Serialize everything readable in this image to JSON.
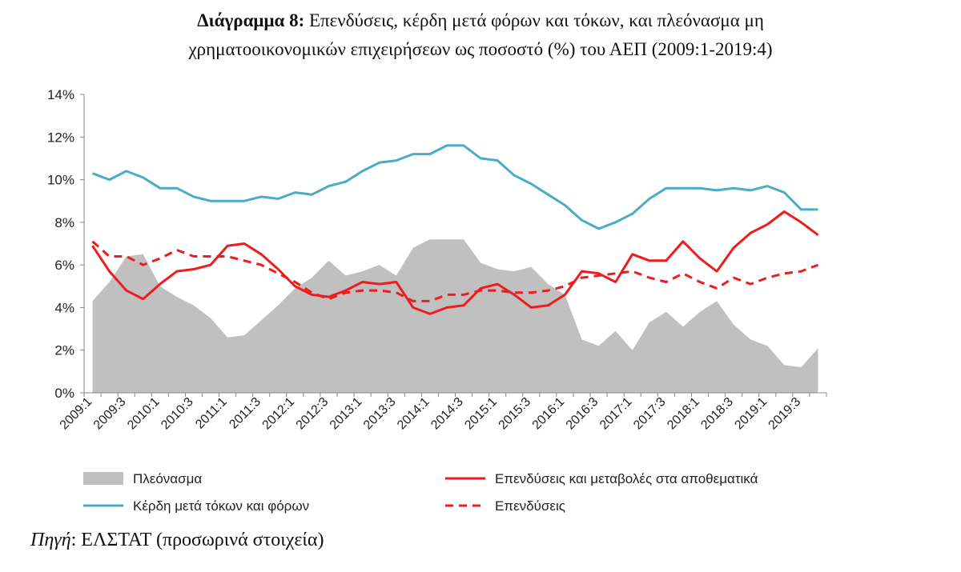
{
  "title": {
    "lead": "Διάγραμμα 8:",
    "line1": "Επενδύσεις, κέρδη μετά φόρων και τόκων, και πλεόνασμα μη",
    "line2": "χρηματοοικονομικών επιχειρήσεων ως ποσοστό (%) του ΑΕΠ (2009:1-2019:4)"
  },
  "source": {
    "label": "Πηγή",
    "text": ": ΕΛΣΤΑΤ (προσωρινά στοιχεία)"
  },
  "chart_data": {
    "type": "line",
    "title": "",
    "xlabel": "",
    "ylabel": "",
    "ylim": [
      0,
      14
    ],
    "yticks": [
      "0%",
      "2%",
      "4%",
      "6%",
      "8%",
      "10%",
      "12%",
      "14%"
    ],
    "grid": false,
    "legend_position": "bottom",
    "categories": [
      "2009:1",
      "2009:2",
      "2009:3",
      "2009:4",
      "2010:1",
      "2010:2",
      "2010:3",
      "2010:4",
      "2011:1",
      "2011:2",
      "2011:3",
      "2011:4",
      "2012:1",
      "2012:2",
      "2012:3",
      "2012:4",
      "2013:1",
      "2013:2",
      "2013:3",
      "2013:4",
      "2014:1",
      "2014:2",
      "2014:3",
      "2014:4",
      "2015:1",
      "2015:2",
      "2015:3",
      "2015:4",
      "2016:1",
      "2016:2",
      "2016:3",
      "2016:4",
      "2017:1",
      "2017:2",
      "2017:3",
      "2017:4",
      "2018:1",
      "2018:2",
      "2018:3",
      "2018:4",
      "2019:1",
      "2019:2",
      "2019:3",
      "2019:4"
    ],
    "x_tick_labels": [
      "2009:1",
      "2009:3",
      "2010:1",
      "2010:3",
      "2011:1",
      "2011:3",
      "2012:1",
      "2012:3",
      "2013:1",
      "2013:3",
      "2014:1",
      "2014:3",
      "2015:1",
      "2015:3",
      "2016:1",
      "2016:3",
      "2017:1",
      "2017:3",
      "2018:1",
      "2018:3",
      "2019:1",
      "2019:3"
    ],
    "series": [
      {
        "name": "Πλεόνασμα",
        "style": "area",
        "color": "#c0c0c0",
        "values": [
          4.3,
          5.2,
          6.4,
          6.5,
          5.0,
          4.5,
          4.1,
          3.5,
          2.6,
          2.7,
          3.4,
          4.1,
          4.9,
          5.4,
          6.2,
          5.5,
          5.7,
          6.0,
          5.5,
          6.8,
          7.2,
          7.2,
          7.2,
          6.1,
          5.8,
          5.7,
          5.9,
          5.1,
          4.6,
          2.5,
          2.2,
          2.9,
          2.0,
          3.3,
          3.8,
          3.1,
          3.8,
          4.3,
          3.2,
          2.5,
          2.2,
          1.3,
          1.2,
          2.1
        ]
      },
      {
        "name": "Κέρδη μετά τόκων και φόρων",
        "style": "line",
        "color": "#4bacc6",
        "values": [
          10.3,
          10.0,
          10.4,
          10.1,
          9.6,
          9.6,
          9.2,
          9.0,
          9.0,
          9.0,
          9.2,
          9.1,
          9.4,
          9.3,
          9.7,
          9.9,
          10.4,
          10.8,
          10.9,
          11.2,
          11.2,
          11.6,
          11.6,
          11.0,
          10.9,
          10.2,
          9.8,
          9.3,
          8.8,
          8.1,
          7.7,
          8.0,
          8.4,
          9.1,
          9.6,
          9.6,
          9.6,
          9.5,
          9.6,
          9.5,
          9.7,
          9.4,
          8.6,
          8.6
        ]
      },
      {
        "name": "Επενδύσεις και μεταβολές στα αποθεματικά",
        "style": "line",
        "color": "#ee1c1c",
        "values": [
          6.9,
          5.7,
          4.8,
          4.4,
          5.1,
          5.7,
          5.8,
          6.0,
          6.9,
          7.0,
          6.5,
          5.8,
          5.0,
          4.6,
          4.5,
          4.8,
          5.2,
          5.1,
          5.2,
          4.0,
          3.7,
          4.0,
          4.1,
          4.9,
          5.1,
          4.6,
          4.0,
          4.1,
          4.6,
          5.7,
          5.6,
          5.2,
          6.5,
          6.2,
          6.2,
          7.1,
          6.3,
          5.7,
          6.8,
          7.5,
          7.9,
          8.5,
          8.0,
          7.4
        ]
      },
      {
        "name": "Επενδύσεις",
        "style": "dashed",
        "color": "#ee1c1c",
        "values": [
          7.1,
          6.4,
          6.4,
          6.0,
          6.3,
          6.7,
          6.4,
          6.4,
          6.4,
          6.2,
          6.0,
          5.6,
          5.2,
          4.7,
          4.4,
          4.7,
          4.8,
          4.8,
          4.7,
          4.3,
          4.3,
          4.6,
          4.6,
          4.8,
          4.8,
          4.7,
          4.7,
          4.8,
          5.0,
          5.4,
          5.5,
          5.6,
          5.7,
          5.4,
          5.2,
          5.6,
          5.2,
          4.9,
          5.4,
          5.1,
          5.4,
          5.6,
          5.7,
          6.0
        ]
      }
    ]
  }
}
